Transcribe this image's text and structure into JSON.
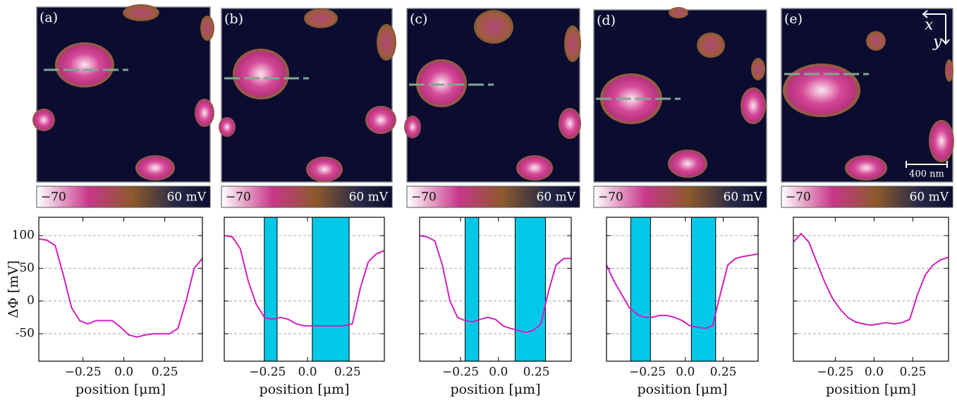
{
  "chart_data": [
    {
      "type": "line",
      "panel_label": "(a)",
      "colorbar_labels": [
        "−70",
        "60 mV"
      ],
      "ylabel": "ΔΦ [mV]",
      "xlabel": "position [μm]",
      "x": [
        -0.52,
        -0.47,
        -0.42,
        -0.37,
        -0.32,
        -0.27,
        -0.22,
        -0.17,
        -0.12,
        -0.07,
        -0.02,
        0.03,
        0.08,
        0.13,
        0.18,
        0.23,
        0.28,
        0.33,
        0.38,
        0.43,
        0.48
      ],
      "series": [
        {
          "color": "#d21fbe",
          "values": [
            95,
            93,
            85,
            40,
            -10,
            -30,
            -35,
            -30,
            -30,
            -30,
            -40,
            -52,
            -55,
            -52,
            -50,
            -50,
            -50,
            -42,
            0,
            50,
            65
          ]
        }
      ],
      "highlight_regions": [],
      "xlim": [
        -0.52,
        0.48
      ],
      "xticks": [
        {
          "value": -0.25,
          "label": "−0.25"
        },
        {
          "value": 0,
          "label": "0.0"
        },
        0.25
      ],
      "ylim": [
        -92,
        128
      ],
      "yticks": [
        100,
        50,
        0,
        -50
      ],
      "grid": true
    },
    {
      "type": "line",
      "panel_label": "(b)",
      "colorbar_labels": [
        "−70",
        "60 mV"
      ],
      "xlabel": "position [μm]",
      "x": [
        -0.52,
        -0.47,
        -0.42,
        -0.37,
        -0.32,
        -0.27,
        -0.22,
        -0.17,
        -0.12,
        -0.07,
        -0.02,
        0.03,
        0.08,
        0.13,
        0.18,
        0.23,
        0.28,
        0.33,
        0.38,
        0.43,
        0.48
      ],
      "series": [
        {
          "color": "#d21fbe",
          "values": [
            100,
            98,
            80,
            30,
            -5,
            -25,
            -28,
            -25,
            -28,
            -35,
            -38,
            -38,
            -38,
            -38,
            -38,
            -38,
            -35,
            20,
            60,
            72,
            77
          ]
        }
      ],
      "highlight_regions": [
        [
          -0.27,
          -0.19
        ],
        [
          0.03,
          0.26
        ]
      ],
      "highlight_color": "#00c8e6",
      "xlim": [
        -0.52,
        0.48
      ],
      "xticks": [
        {
          "value": -0.25,
          "label": "−0.25"
        },
        {
          "value": 0,
          "label": "0.0"
        },
        0.25
      ],
      "ylim": [
        -92,
        128
      ],
      "yticks": [
        100,
        50,
        0,
        -50
      ],
      "grid": true
    },
    {
      "type": "line",
      "panel_label": "(c)",
      "colorbar_labels": [
        "−70",
        "60 mV"
      ],
      "xlabel": "position [μm]",
      "x": [
        -0.52,
        -0.47,
        -0.42,
        -0.37,
        -0.32,
        -0.27,
        -0.22,
        -0.17,
        -0.12,
        -0.07,
        -0.02,
        0.03,
        0.08,
        0.13,
        0.18,
        0.23,
        0.28,
        0.33,
        0.38,
        0.43,
        0.48
      ],
      "series": [
        {
          "color": "#d21fbe",
          "values": [
            100,
            98,
            92,
            55,
            0,
            -25,
            -30,
            -32,
            -28,
            -25,
            -28,
            -38,
            -42,
            -45,
            -48,
            -45,
            -35,
            15,
            55,
            65,
            65
          ]
        }
      ],
      "highlight_regions": [
        [
          -0.22,
          -0.13
        ],
        [
          0.11,
          0.31
        ]
      ],
      "highlight_color": "#00c8e6",
      "xlim": [
        -0.52,
        0.48
      ],
      "xticks": [
        {
          "value": -0.25,
          "label": "−0.25"
        },
        {
          "value": 0,
          "label": "0.0"
        },
        0.25
      ],
      "ylim": [
        -92,
        128
      ],
      "yticks": [
        100,
        50,
        0,
        -50
      ],
      "grid": true
    },
    {
      "type": "line",
      "panel_label": "(d)",
      "colorbar_labels": [
        "−70",
        "60 mV"
      ],
      "xlabel": "position [μm]",
      "x": [
        -0.52,
        -0.47,
        -0.42,
        -0.37,
        -0.32,
        -0.27,
        -0.22,
        -0.17,
        -0.12,
        -0.07,
        -0.02,
        0.03,
        0.08,
        0.13,
        0.18,
        0.23,
        0.28,
        0.33,
        0.38,
        0.43,
        0.48
      ],
      "series": [
        {
          "color": "#d21fbe",
          "values": [
            55,
            30,
            10,
            -10,
            -20,
            -25,
            -25,
            -22,
            -22,
            -25,
            -30,
            -38,
            -40,
            -42,
            -38,
            10,
            55,
            65,
            68,
            70,
            72
          ]
        }
      ],
      "highlight_regions": [
        [
          -0.36,
          -0.23
        ],
        [
          0.04,
          0.2
        ]
      ],
      "highlight_color": "#00c8e6",
      "xlim": [
        -0.52,
        0.48
      ],
      "xticks": [
        {
          "value": -0.25,
          "label": "−0.25"
        },
        {
          "value": 0,
          "label": "0.0"
        },
        0.25
      ],
      "ylim": [
        -92,
        128
      ],
      "yticks": [
        100,
        50,
        0,
        -50
      ],
      "grid": true
    },
    {
      "type": "line",
      "panel_label": "(e)",
      "colorbar_labels": [
        "−70",
        "60 mV"
      ],
      "xlabel": "position [μm]",
      "axis_arrow_labels": [
        "x",
        "y"
      ],
      "scale_bar_label": "400 nm",
      "x": [
        -0.52,
        -0.47,
        -0.42,
        -0.37,
        -0.32,
        -0.27,
        -0.22,
        -0.17,
        -0.12,
        -0.07,
        -0.02,
        0.03,
        0.08,
        0.13,
        0.18,
        0.23,
        0.28,
        0.33,
        0.38,
        0.43,
        0.48
      ],
      "series": [
        {
          "color": "#d21fbe",
          "values": [
            90,
            103,
            90,
            60,
            30,
            5,
            -12,
            -25,
            -32,
            -35,
            -37,
            -35,
            -33,
            -35,
            -33,
            -28,
            10,
            40,
            55,
            63,
            67
          ]
        }
      ],
      "highlight_regions": [],
      "xlim": [
        -0.52,
        0.48
      ],
      "xticks": [
        {
          "value": -0.25,
          "label": "−0.25"
        },
        {
          "value": 0,
          "label": "0.0"
        },
        0.25
      ],
      "ylim": [
        -92,
        128
      ],
      "yticks": [
        100,
        50,
        0,
        -50
      ],
      "grid": true
    }
  ]
}
